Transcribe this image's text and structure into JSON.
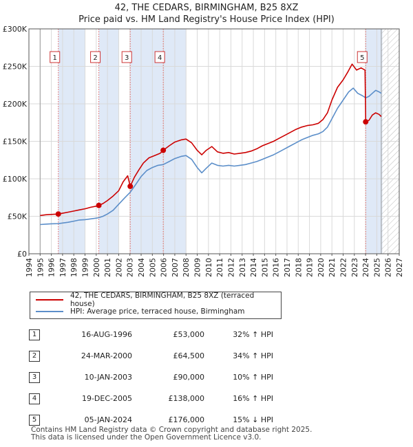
{
  "title_line1": "42, THE CEDARS, BIRMINGHAM, B25 8XZ",
  "title_line2": "Price paid vs. HM Land Registry's House Price Index (HPI)",
  "colors": {
    "red": "#cc0000",
    "blue": "#5b8ec9",
    "shade": "#dfe9f7",
    "grid": "#d9d9d9",
    "marker_line": "#e06060"
  },
  "chart_data": {
    "type": "line",
    "xlim": [
      1994,
      2027
    ],
    "ylim": [
      0,
      300000
    ],
    "x_ticks": [
      "1994",
      "1995",
      "1996",
      "1997",
      "1998",
      "1999",
      "2000",
      "2001",
      "2002",
      "2003",
      "2004",
      "2005",
      "2006",
      "2007",
      "2008",
      "2009",
      "2010",
      "2011",
      "2012",
      "2013",
      "2014",
      "2015",
      "2016",
      "2017",
      "2018",
      "2019",
      "2020",
      "2021",
      "2022",
      "2023",
      "2024",
      "2025",
      "2026",
      "2027"
    ],
    "y_ticks": [
      {
        "value": 0,
        "label": "£0"
      },
      {
        "value": 50000,
        "label": "£50K"
      },
      {
        "value": 100000,
        "label": "£100K"
      },
      {
        "value": 150000,
        "label": "£150K"
      },
      {
        "value": 200000,
        "label": "£200K"
      },
      {
        "value": 250000,
        "label": "£250K"
      },
      {
        "value": 300000,
        "label": "£300K"
      }
    ],
    "data_start": 1995.0,
    "data_end": 2025.4,
    "shaded_spans": [
      [
        1996.62,
        1999.0
      ],
      [
        2000.23,
        2002.0
      ],
      [
        2003.03,
        2006.0
      ],
      [
        2005.97,
        2008.0
      ],
      [
        2024.01,
        2025.5
      ]
    ],
    "hatch_from": 2025.4,
    "sales": [
      {
        "n": "1",
        "x": 1996.62,
        "price": 53000
      },
      {
        "n": "2",
        "x": 2000.23,
        "price": 64500
      },
      {
        "n": "3",
        "x": 2003.03,
        "price": 90000
      },
      {
        "n": "4",
        "x": 2005.97,
        "price": 138000
      },
      {
        "n": "5",
        "x": 2024.01,
        "price": 176000
      }
    ],
    "series": [
      {
        "name": "42, THE CEDARS, BIRMINGHAM, B25 8XZ (terraced house)",
        "color": "#cc0000",
        "points": [
          [
            1995.0,
            51000
          ],
          [
            1995.5,
            52000
          ],
          [
            1996.0,
            52500
          ],
          [
            1996.62,
            53000
          ],
          [
            1997.0,
            54000
          ],
          [
            1997.5,
            55500
          ],
          [
            1998.0,
            57000
          ],
          [
            1998.5,
            58500
          ],
          [
            1999.0,
            60000
          ],
          [
            1999.5,
            62000
          ],
          [
            2000.0,
            63500
          ],
          [
            2000.23,
            64500
          ],
          [
            2000.6,
            67000
          ],
          [
            2001.0,
            71000
          ],
          [
            2001.5,
            77000
          ],
          [
            2002.0,
            84000
          ],
          [
            2002.4,
            96000
          ],
          [
            2002.8,
            104000
          ],
          [
            2003.03,
            90000
          ],
          [
            2003.4,
            102000
          ],
          [
            2003.8,
            112000
          ],
          [
            2004.2,
            121000
          ],
          [
            2004.7,
            128000
          ],
          [
            2005.2,
            131000
          ],
          [
            2005.7,
            134000
          ],
          [
            2005.97,
            138000
          ],
          [
            2006.5,
            144000
          ],
          [
            2007.0,
            149000
          ],
          [
            2007.6,
            152000
          ],
          [
            2008.0,
            153000
          ],
          [
            2008.5,
            148000
          ],
          [
            2009.0,
            138000
          ],
          [
            2009.4,
            132000
          ],
          [
            2009.8,
            138000
          ],
          [
            2010.3,
            143000
          ],
          [
            2010.8,
            136000
          ],
          [
            2011.3,
            134000
          ],
          [
            2011.8,
            135000
          ],
          [
            2012.3,
            133000
          ],
          [
            2012.8,
            134000
          ],
          [
            2013.3,
            135000
          ],
          [
            2013.8,
            137000
          ],
          [
            2014.3,
            140000
          ],
          [
            2014.8,
            144000
          ],
          [
            2015.3,
            147000
          ],
          [
            2015.8,
            150000
          ],
          [
            2016.3,
            154000
          ],
          [
            2016.8,
            158000
          ],
          [
            2017.3,
            162000
          ],
          [
            2017.8,
            166000
          ],
          [
            2018.3,
            169000
          ],
          [
            2018.8,
            171000
          ],
          [
            2019.3,
            172000
          ],
          [
            2019.8,
            174000
          ],
          [
            2020.2,
            179000
          ],
          [
            2020.6,
            188000
          ],
          [
            2021.0,
            205000
          ],
          [
            2021.5,
            222000
          ],
          [
            2022.0,
            232000
          ],
          [
            2022.4,
            242000
          ],
          [
            2022.8,
            253000
          ],
          [
            2023.2,
            245000
          ],
          [
            2023.6,
            248000
          ],
          [
            2023.95,
            245000
          ],
          [
            2024.01,
            176000
          ],
          [
            2024.3,
            178000
          ],
          [
            2024.6,
            185000
          ],
          [
            2024.9,
            188000
          ],
          [
            2025.2,
            186000
          ],
          [
            2025.4,
            183000
          ]
        ]
      },
      {
        "name": "HPI: Average price, terraced house, Birmingham",
        "color": "#5b8ec9",
        "points": [
          [
            1995.0,
            39000
          ],
          [
            1995.5,
            39500
          ],
          [
            1996.0,
            40000
          ],
          [
            1996.62,
            40200
          ],
          [
            1997.0,
            41000
          ],
          [
            1997.5,
            42000
          ],
          [
            1998.0,
            43500
          ],
          [
            1998.5,
            45000
          ],
          [
            1999.0,
            45500
          ],
          [
            1999.5,
            46500
          ],
          [
            2000.0,
            47500
          ],
          [
            2000.23,
            48200
          ],
          [
            2000.6,
            50000
          ],
          [
            2001.0,
            53000
          ],
          [
            2001.5,
            58000
          ],
          [
            2002.0,
            66000
          ],
          [
            2002.5,
            74000
          ],
          [
            2003.03,
            82000
          ],
          [
            2003.5,
            92000
          ],
          [
            2004.0,
            103000
          ],
          [
            2004.5,
            111000
          ],
          [
            2005.0,
            115000
          ],
          [
            2005.5,
            118000
          ],
          [
            2005.97,
            119000
          ],
          [
            2006.5,
            123000
          ],
          [
            2007.0,
            127000
          ],
          [
            2007.6,
            130000
          ],
          [
            2008.0,
            131000
          ],
          [
            2008.5,
            126000
          ],
          [
            2009.0,
            115000
          ],
          [
            2009.4,
            108000
          ],
          [
            2009.8,
            114000
          ],
          [
            2010.3,
            121000
          ],
          [
            2010.8,
            118000
          ],
          [
            2011.3,
            117000
          ],
          [
            2011.8,
            118000
          ],
          [
            2012.3,
            117000
          ],
          [
            2012.8,
            118000
          ],
          [
            2013.3,
            119000
          ],
          [
            2013.8,
            121000
          ],
          [
            2014.3,
            123000
          ],
          [
            2014.8,
            126000
          ],
          [
            2015.3,
            129000
          ],
          [
            2015.8,
            132000
          ],
          [
            2016.3,
            136000
          ],
          [
            2016.8,
            140000
          ],
          [
            2017.3,
            144000
          ],
          [
            2017.8,
            148000
          ],
          [
            2018.3,
            152000
          ],
          [
            2018.8,
            155000
          ],
          [
            2019.3,
            158000
          ],
          [
            2019.8,
            160000
          ],
          [
            2020.2,
            163000
          ],
          [
            2020.6,
            169000
          ],
          [
            2021.0,
            180000
          ],
          [
            2021.5,
            194000
          ],
          [
            2022.0,
            205000
          ],
          [
            2022.5,
            216000
          ],
          [
            2022.9,
            221000
          ],
          [
            2023.3,
            214000
          ],
          [
            2023.7,
            211000
          ],
          [
            2024.01,
            208000
          ],
          [
            2024.3,
            210000
          ],
          [
            2024.6,
            214000
          ],
          [
            2024.9,
            218000
          ],
          [
            2025.2,
            216000
          ],
          [
            2025.4,
            214000
          ]
        ]
      }
    ]
  },
  "legend": {
    "red_label": "42, THE CEDARS, BIRMINGHAM, B25 8XZ (terraced house)",
    "blue_label": "HPI: Average price, terraced house, Birmingham"
  },
  "sales_table": [
    {
      "n": "1",
      "date": "16-AUG-1996",
      "price": "£53,000",
      "hpi": "32% ↑ HPI"
    },
    {
      "n": "2",
      "date": "24-MAR-2000",
      "price": "£64,500",
      "hpi": "34% ↑ HPI"
    },
    {
      "n": "3",
      "date": "10-JAN-2003",
      "price": "£90,000",
      "hpi": "10% ↑ HPI"
    },
    {
      "n": "4",
      "date": "19-DEC-2005",
      "price": "£138,000",
      "hpi": "16% ↑ HPI"
    },
    {
      "n": "5",
      "date": "05-JAN-2024",
      "price": "£176,000",
      "hpi": "15% ↓ HPI"
    }
  ],
  "footer_line1": "Contains HM Land Registry data © Crown copyright and database right 2025.",
  "footer_line2": "This data is licensed under the Open Government Licence v3.0."
}
